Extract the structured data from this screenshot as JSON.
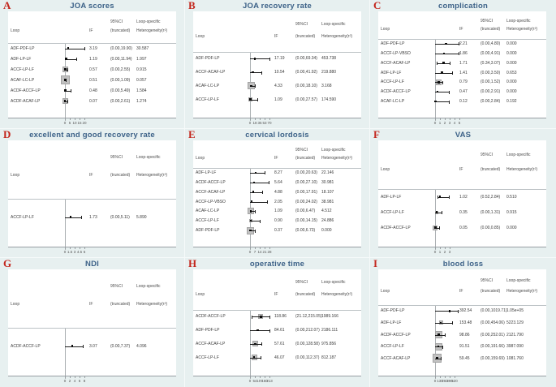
{
  "colors": {
    "background": "#e7f0f0",
    "plot_background": "#ffffff",
    "panel_letter": "#c3261d",
    "panel_title": "#3d6288",
    "weight_box_fill": "#c1c1c1",
    "ci_line": "#1c1c1c"
  },
  "chart_data": {
    "type": "forest",
    "description": "Loop-specific inconsistency plots (inconsistency factor IF with truncated 95% CI and loop-specific heterogeneity) for nine outcomes of a network meta-analysis of cervical surgery approaches",
    "col_headers": {
      "loop": "Loop",
      "if": "IF",
      "ci_top": "95%CI",
      "ci_bottom": "(truncated)",
      "het_top": "Loop-specific",
      "het_bottom": "Heterogeneity(τ²)"
    },
    "panels": [
      {
        "letter": "A",
        "title": "JOA scores",
        "axis_ticks": [
          "0",
          "5",
          "10",
          "15",
          "20"
        ],
        "axis_max": 20,
        "rows": [
          {
            "loop": "ADF-PDF-LP",
            "if": "3.19",
            "ci": "(0.00,19.90)",
            "het": "30.587",
            "if_val": 3.19,
            "ci_lo": 0,
            "ci_hi": 19.9,
            "box": 0
          },
          {
            "loop": "ADF-LP-LF",
            "if": "1.19",
            "ci": "(0.00,11.94)",
            "het": "1.997",
            "if_val": 1.19,
            "ci_lo": 0,
            "ci_hi": 11.94,
            "box": 0
          },
          {
            "loop": "ACCF-LP-LF",
            "if": "0.57",
            "ci": "(0.00,2.55)",
            "het": "0.915",
            "if_val": 0.57,
            "ci_lo": 0,
            "ci_hi": 2.55,
            "box": 7
          },
          {
            "loop": "ACAF-LC-LP",
            "if": "0.51",
            "ci": "(0.00,1.09)",
            "het": "0.057",
            "if_val": 0.51,
            "ci_lo": 0,
            "ci_hi": 1.09,
            "box": 11
          },
          {
            "loop": "ACDF-ACCF-LP",
            "if": "0.48",
            "ci": "(0.00,5.49)",
            "het": "1.584",
            "if_val": 0.48,
            "ci_lo": 0,
            "ci_hi": 5.49,
            "box": 0
          },
          {
            "loop": "ACDF-ACAF-LP",
            "if": "0.07",
            "ci": "(0.00,2.61)",
            "het": "1.274",
            "if_val": 0.07,
            "ci_lo": 0,
            "ci_hi": 2.61,
            "box": 7
          }
        ]
      },
      {
        "letter": "B",
        "title": "JOA recovery rate",
        "axis_ticks": [
          "0",
          "18",
          "35",
          "53",
          "70"
        ],
        "axis_max": 70,
        "rows": [
          {
            "loop": "ADF-PDF-LP",
            "if": "17.19",
            "ci": "(0.00,69.34)",
            "het": "453.738",
            "if_val": 17.19,
            "ci_lo": 0,
            "ci_hi": 69.34,
            "box": 0
          },
          {
            "loop": "ACCF-ACAF-LP",
            "if": "10.54",
            "ci": "(0.00,41.92)",
            "het": "219.880",
            "if_val": 10.54,
            "ci_lo": 0,
            "ci_hi": 41.92,
            "box": 0
          },
          {
            "loop": "ACAF-LC-LP",
            "if": "4.33",
            "ci": "(0.00,18.10)",
            "het": "3.168",
            "if_val": 4.33,
            "ci_lo": 0,
            "ci_hi": 18.1,
            "box": 9
          },
          {
            "loop": "ACCF-LP-LF",
            "if": "1.09",
            "ci": "(0.00,27.57)",
            "het": "174.590",
            "if_val": 1.09,
            "ci_lo": 0,
            "ci_hi": 27.57,
            "box": 5
          }
        ]
      },
      {
        "letter": "C",
        "title": "complication",
        "axis_ticks": [
          "0",
          "1",
          "2",
          "3",
          "4",
          "5"
        ],
        "axis_max": 5,
        "rows": [
          {
            "loop": "ADF-PDF-LP",
            "if": "2.21",
            "ci": "(0.00,4.80)",
            "het": "0.000",
            "if_val": 2.21,
            "ci_lo": 0,
            "ci_hi": 4.8,
            "box": 0
          },
          {
            "loop": "ACCF-LP-VBSO",
            "if": "1.86",
            "ci": "(0.00,4.91)",
            "het": "0.000",
            "if_val": 1.86,
            "ci_lo": 0,
            "ci_hi": 4.91,
            "box": 0
          },
          {
            "loop": "ACCF-ACAF-LP",
            "if": "1.71",
            "ci": "(0.34,3.07)",
            "het": "0.000",
            "if_val": 1.71,
            "ci_lo": 0.34,
            "ci_hi": 3.07,
            "box": 0
          },
          {
            "loop": "ADF-LP-LF",
            "if": "1.41",
            "ci": "(0.00,3.50)",
            "het": "0.653",
            "if_val": 1.41,
            "ci_lo": 0,
            "ci_hi": 3.5,
            "box": 0
          },
          {
            "loop": "ACCF-LP-LF",
            "if": "0.79",
            "ci": "(0.00,1.52)",
            "het": "0.000",
            "if_val": 0.79,
            "ci_lo": 0,
            "ci_hi": 1.52,
            "box": 7
          },
          {
            "loop": "ACDF-ACCF-LP",
            "if": "0.47",
            "ci": "(0.00,2.91)",
            "het": "0.000",
            "if_val": 0.47,
            "ci_lo": 0,
            "ci_hi": 2.91,
            "box": 0
          },
          {
            "loop": "ACAF-LC-LP",
            "if": "0.12",
            "ci": "(0.00,2.84)",
            "het": "0.192",
            "if_val": 0.12,
            "ci_lo": 0,
            "ci_hi": 2.84,
            "box": 0
          }
        ]
      },
      {
        "letter": "D",
        "title": "excellent and good recovery rate",
        "axis_ticks": [
          "0",
          "1.5",
          "3",
          "4.5",
          "6"
        ],
        "axis_max": 6,
        "rows": [
          {
            "loop": "ACCF-LP-LF",
            "if": "1.73",
            "ci": "(0.00,5.11)",
            "het": "5.890",
            "if_val": 1.73,
            "ci_lo": 0,
            "ci_hi": 5.11,
            "box": 0
          }
        ]
      },
      {
        "letter": "E",
        "title": "cervical lordosis",
        "axis_ticks": [
          "0",
          "7",
          "14",
          "21",
          "28"
        ],
        "axis_max": 28,
        "rows": [
          {
            "loop": "ADF-LP-LF",
            "if": "8.27",
            "ci": "(0.00,20.63)",
            "het": "22.146",
            "if_val": 8.27,
            "ci_lo": 0,
            "ci_hi": 20.63,
            "box": 0
          },
          {
            "loop": "ACDF-ACCF-LP",
            "if": "5.64",
            "ci": "(0.00,27.10)",
            "het": "30.981",
            "if_val": 5.64,
            "ci_lo": 0,
            "ci_hi": 27.1,
            "box": 0
          },
          {
            "loop": "ACCF-ACAF-LP",
            "if": "4.88",
            "ci": "(0.00,17.91)",
            "het": "18.107",
            "if_val": 4.88,
            "ci_lo": 0,
            "ci_hi": 17.91,
            "box": 0
          },
          {
            "loop": "ACCF-LP-VBSO",
            "if": "2.05",
            "ci": "(0.00,24.02)",
            "het": "38.981",
            "if_val": 2.05,
            "ci_lo": 0,
            "ci_hi": 24.02,
            "box": 0
          },
          {
            "loop": "ACAF-LC-LP",
            "if": "1.09",
            "ci": "(0.00,6.47)",
            "het": "4.512",
            "if_val": 1.09,
            "ci_lo": 0,
            "ci_hi": 6.47,
            "box": 8
          },
          {
            "loop": "ACCF-LP-LF",
            "if": "0.90",
            "ci": "(0.00,14.15)",
            "het": "24.886",
            "if_val": 0.9,
            "ci_lo": 0,
            "ci_hi": 14.15,
            "box": 4
          },
          {
            "loop": "ADF-PDF-LP",
            "if": "0.37",
            "ci": "(0.00,6.73)",
            "het": "0.000",
            "if_val": 0.37,
            "ci_lo": 0,
            "ci_hi": 6.73,
            "box": 9
          }
        ]
      },
      {
        "letter": "F",
        "title": "VAS",
        "axis_ticks": [
          "0",
          "1",
          "2",
          "3"
        ],
        "axis_max": 3,
        "rows": [
          {
            "loop": "ADF-LP-LF",
            "if": "1.02",
            "ci": "(0.52,2.84)",
            "het": "0.510",
            "if_val": 1.02,
            "ci_lo": 0.52,
            "ci_hi": 2.84,
            "box": 0
          },
          {
            "loop": "ACCF-LP-LF",
            "if": "0.35",
            "ci": "(0.00,1.31)",
            "het": "0.915",
            "if_val": 0.35,
            "ci_lo": 0,
            "ci_hi": 1.31,
            "box": 4
          },
          {
            "loop": "ACDF-ACCF-LP",
            "if": "0.05",
            "ci": "(0.00,0.85)",
            "het": "0.000",
            "if_val": 0.05,
            "ci_lo": 0,
            "ci_hi": 0.85,
            "box": 6
          }
        ]
      },
      {
        "letter": "G",
        "title": "NDI",
        "axis_ticks": [
          "0",
          "2",
          "4",
          "6",
          "8"
        ],
        "axis_max": 8,
        "rows": [
          {
            "loop": "ACDF-ACCF-LP",
            "if": "3.07",
            "ci": "(0.00,7.37)",
            "het": "4.096",
            "if_val": 3.07,
            "ci_lo": 0,
            "ci_hi": 7.37,
            "box": 0
          }
        ]
      },
      {
        "letter": "H",
        "title": "operative time",
        "axis_ticks": [
          "0",
          "54",
          "107",
          "160",
          "213"
        ],
        "axis_max": 213,
        "rows": [
          {
            "loop": "ACDF-ACCF-LP",
            "if": "118.86",
            "ci": "(21.12,215.05)",
            "het": "1989.166",
            "if_val": 118.86,
            "ci_lo": 21.12,
            "ci_hi": 215.05,
            "box": 6
          },
          {
            "loop": "ADF-PDF-LP",
            "if": "84.61",
            "ci": "(0.00,212.07)",
            "het": "2186.111",
            "if_val": 84.61,
            "ci_lo": 0,
            "ci_hi": 212.07,
            "box": 0
          },
          {
            "loop": "ACCF-ACAF-LP",
            "if": "57.61",
            "ci": "(0.00,128.58)",
            "het": "975.856",
            "if_val": 57.61,
            "ci_lo": 0,
            "ci_hi": 128.58,
            "box": 7
          },
          {
            "loop": "ACCF-LP-LF",
            "if": "46.07",
            "ci": "(0.00,112.37)",
            "het": "812.187",
            "if_val": 46.07,
            "ci_lo": 0,
            "ci_hi": 112.37,
            "box": 7
          }
        ]
      },
      {
        "letter": "I",
        "title": "blood loss",
        "axis_ticks": [
          "0",
          "130",
          "260",
          "390",
          "520"
        ],
        "axis_max": 520,
        "rows": [
          {
            "loop": "ADF-PDF-LP",
            "if": "392.54",
            "ci": "(0.00,1019.71)",
            "het": "1.05e+05",
            "if_val": 392.54,
            "ci_lo": 0,
            "ci_hi": 1019.71,
            "box": 0
          },
          {
            "loop": "ADF-LP-LF",
            "if": "153.48",
            "ci": "(0.00,454.06)",
            "het": "5223.129",
            "if_val": 153.48,
            "ci_lo": 0,
            "ci_hi": 454.06,
            "box": 5
          },
          {
            "loop": "ACDF-ACCF-LP",
            "if": "98.86",
            "ci": "(0.00,252.01)",
            "het": "2121.790",
            "if_val": 98.86,
            "ci_lo": 0,
            "ci_hi": 252.01,
            "box": 9
          },
          {
            "loop": "ACCF-LP-LF",
            "if": "91.51",
            "ci": "(0.00,191.66)",
            "het": "3987.090",
            "if_val": 91.51,
            "ci_lo": 0,
            "ci_hi": 191.66,
            "box": 9
          },
          {
            "loop": "ACCF-ACAF-LP",
            "if": "59.45",
            "ci": "(0.00,159.69)",
            "het": "1081.760",
            "if_val": 59.45,
            "ci_lo": 0,
            "ci_hi": 159.69,
            "box": 11
          }
        ]
      }
    ]
  }
}
